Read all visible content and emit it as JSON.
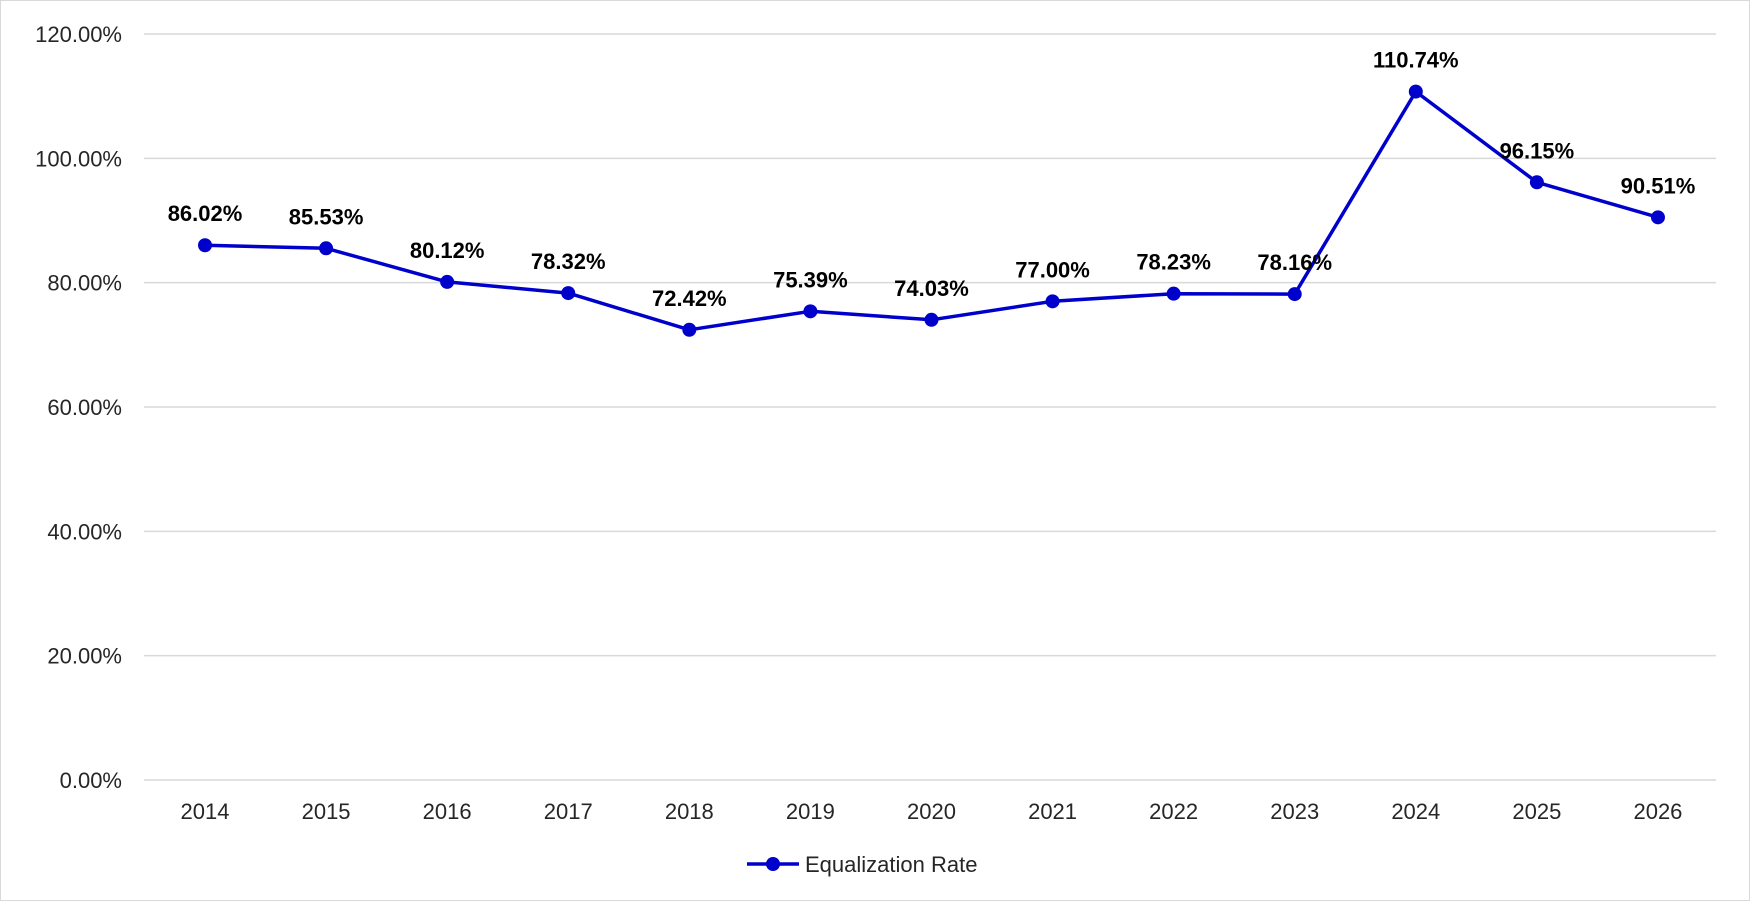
{
  "chart_data": {
    "type": "line",
    "title": "",
    "xlabel": "",
    "ylabel": "",
    "categories": [
      "2014",
      "2015",
      "2016",
      "2017",
      "2018",
      "2019",
      "2020",
      "2021",
      "2022",
      "2023",
      "2024",
      "2025",
      "2026"
    ],
    "series": [
      {
        "name": "Equalization Rate",
        "color": "#0000cc",
        "values": [
          86.02,
          85.53,
          80.12,
          78.32,
          72.42,
          75.39,
          74.03,
          77.0,
          78.23,
          78.16,
          110.74,
          96.15,
          90.51
        ],
        "labels": [
          "86.02%",
          "85.53%",
          "80.12%",
          "78.32%",
          "72.42%",
          "75.39%",
          "74.03%",
          "77.00%",
          "78.23%",
          "78.16%",
          "110.74%",
          "96.15%",
          "90.51%"
        ]
      }
    ],
    "ylim": [
      0,
      120
    ],
    "yticks": [
      0,
      20,
      40,
      60,
      80,
      100,
      120
    ],
    "ytick_labels": [
      "0.00%",
      "20.00%",
      "40.00%",
      "60.00%",
      "80.00%",
      "100.00%",
      "120.00%"
    ],
    "grid": true,
    "gridline_color": "#d9d9d9",
    "legend": "bottom-center"
  }
}
